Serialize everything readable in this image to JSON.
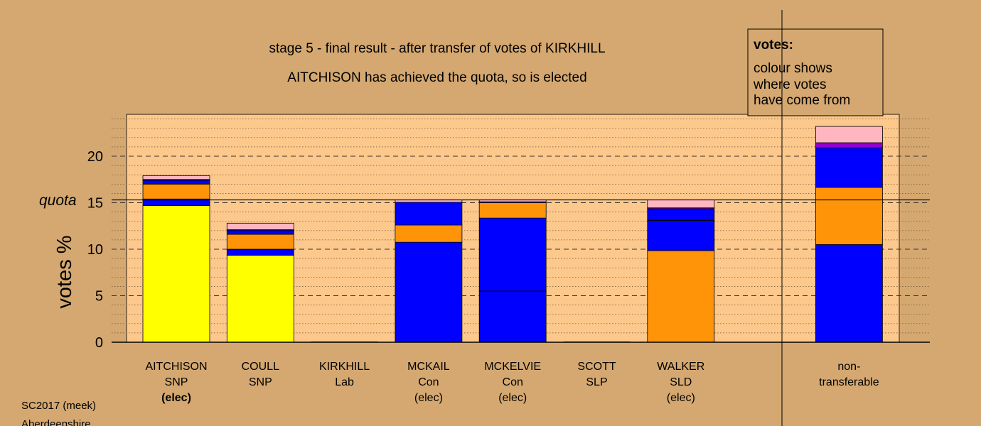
{
  "chart_data": {
    "type": "bar",
    "title": "stage 5 - final result - after transfer of votes of KIRKHILL",
    "subtitle": "AITCHISON has achieved the quota, so is elected",
    "ylabel": "votes %",
    "ylim": [
      0,
      24.5
    ],
    "yticks": [
      0,
      5,
      10,
      15,
      20
    ],
    "quota": 15.3,
    "quota_label": "quota",
    "grid": true,
    "legend": {
      "title": "votes:",
      "lines": [
        "colour shows",
        "where votes",
        "have come from"
      ]
    },
    "colors": {
      "snp": "#ffff00",
      "con": "#0000ff",
      "sld": "#ff9408",
      "lab": "#ffb6c1",
      "slp": "#9400d3",
      "plot_bg": "#fcc88c",
      "page_bg": "#d4a870"
    },
    "bars": [
      {
        "line1": "AITCHISON",
        "line2": "SNP",
        "line3": "(elec)",
        "bold3": true,
        "segments": [
          {
            "from": "snp",
            "value": 14.7
          },
          {
            "from": "con",
            "value": 0.7
          },
          {
            "from": "sld",
            "value": 1.6
          },
          {
            "from": "con",
            "value": 0.4
          },
          {
            "from": "con",
            "value": 0.1
          },
          {
            "from": "lab",
            "value": 0.4
          }
        ]
      },
      {
        "line1": "COULL",
        "line2": "SNP",
        "line3": "",
        "bold3": false,
        "segments": [
          {
            "from": "snp",
            "value": 9.35
          },
          {
            "from": "con",
            "value": 0.65
          },
          {
            "from": "sld",
            "value": 1.6
          },
          {
            "from": "con",
            "value": 0.4
          },
          {
            "from": "con",
            "value": 0.1
          },
          {
            "from": "lab",
            "value": 0.7
          }
        ]
      },
      {
        "line1": "KIRKHILL",
        "line2": "Lab",
        "line3": "",
        "bold3": false,
        "segments": []
      },
      {
        "line1": "MCKAIL",
        "line2": "Con",
        "line3": "(elec)",
        "bold3": false,
        "segments": [
          {
            "from": "con",
            "value": 10.75
          },
          {
            "from": "sld",
            "value": 1.85
          },
          {
            "from": "con",
            "value": 2.45
          },
          {
            "from": "lab",
            "value": 0.25
          }
        ]
      },
      {
        "line1": "MCKELVIE",
        "line2": "Con",
        "line3": "(elec)",
        "bold3": false,
        "segments": [
          {
            "from": "con",
            "value": 5.5
          },
          {
            "from": "con",
            "value": 7.85
          },
          {
            "from": "sld",
            "value": 1.65
          },
          {
            "from": "con",
            "value": 0.1
          },
          {
            "from": "lab",
            "value": 0.2
          }
        ]
      },
      {
        "line1": "SCOTT",
        "line2": "SLP",
        "line3": "",
        "bold3": false,
        "segments": []
      },
      {
        "line1": "WALKER",
        "line2": "SLD",
        "line3": "(elec)",
        "bold3": false,
        "segments": [
          {
            "from": "sld",
            "value": 9.85
          },
          {
            "from": "con",
            "value": 3.25
          },
          {
            "from": "con",
            "value": 1.25
          },
          {
            "from": "slp",
            "value": 0.1
          },
          {
            "from": "lab",
            "value": 0.85
          }
        ]
      },
      {
        "line1": "",
        "line2": "",
        "line3": "",
        "bold3": false,
        "segments": []
      },
      {
        "line1": "non-",
        "line2": "transferable",
        "line3": "",
        "bold3": false,
        "segments": [
          {
            "from": "con",
            "value": 10.5
          },
          {
            "from": "sld",
            "value": 6.15
          },
          {
            "from": "con",
            "value": 4.25
          },
          {
            "from": "slp",
            "value": 0.55
          },
          {
            "from": "lab",
            "value": 1.75
          }
        ]
      }
    ]
  },
  "footer": {
    "line1": "SC2017 (meek)",
    "line2": "Aberdeenshire"
  }
}
